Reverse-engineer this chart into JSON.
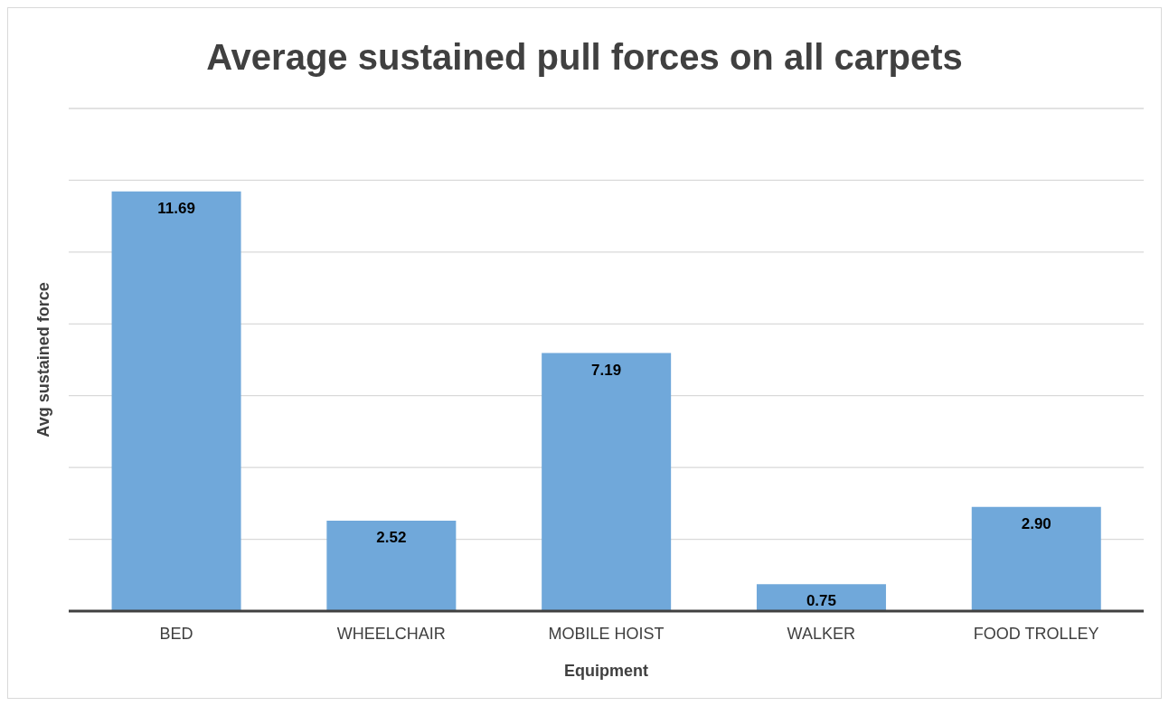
{
  "chart_data": {
    "type": "bar",
    "title": "Average sustained pull forces on all carpets",
    "xlabel": "Equipment",
    "ylabel": "Avg sustained force",
    "categories": [
      "BED",
      "WHEELCHAIR",
      "MOBILE HOIST",
      "WALKER",
      "FOOD TROLLEY"
    ],
    "values": [
      11.69,
      2.52,
      7.19,
      0.75,
      2.9
    ],
    "value_labels": [
      "11.69",
      "2.52",
      "7.19",
      "0.75",
      "2.90"
    ],
    "color": "#70a8da",
    "ylim": [
      0,
      14
    ],
    "grid": "y",
    "tick_labels": "x",
    "legend": false
  }
}
